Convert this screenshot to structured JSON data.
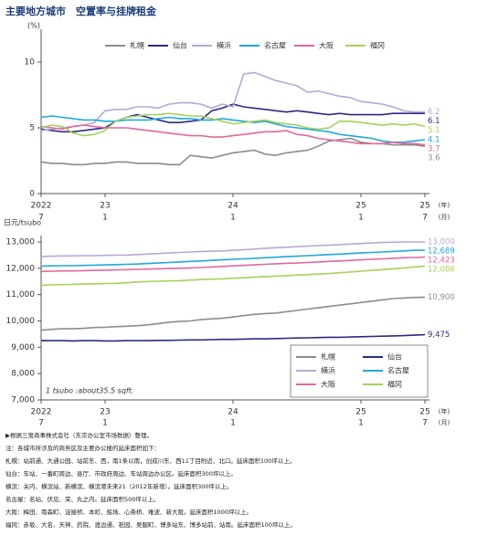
{
  "title": "主要地方城市　空置率与挂牌租金",
  "chart_data": [
    {
      "type": "line",
      "ylabel": "(%)",
      "xlabel": {
        "year": "(年)",
        "month": "(月)"
      },
      "x": [
        "2022-07",
        "2022-08",
        "2022-09",
        "2022-10",
        "2022-11",
        "2022-12",
        "2023-01",
        "2023-02",
        "2023-03",
        "2023-04",
        "2023-05",
        "2023-06",
        "2023-07",
        "2023-08",
        "2023-09",
        "2023-10",
        "2023-11",
        "2023-12",
        "2024-01",
        "2024-02",
        "2024-03",
        "2024-04",
        "2024-05",
        "2024-06",
        "2024-07",
        "2024-08",
        "2024-09",
        "2024-10",
        "2024-11",
        "2024-12",
        "2025-01",
        "2025-02",
        "2025-03",
        "2025-04",
        "2025-05",
        "2025-06",
        "2025-07"
      ],
      "xticks": [
        {
          "value": "2022-07",
          "label": [
            "2022",
            "7"
          ]
        },
        {
          "value": "2023-01",
          "label": [
            "23",
            "1"
          ]
        },
        {
          "value": "2024-01",
          "label": [
            "24",
            "1"
          ]
        },
        {
          "value": "2025-01",
          "label": [
            "25",
            "1"
          ]
        },
        {
          "value": "2025-07",
          "label": [
            "25",
            "7"
          ]
        }
      ],
      "ylim": [
        0,
        10
      ],
      "yticks": [
        0,
        5,
        10
      ],
      "series": [
        {
          "name": "札幌",
          "color": "#8c8c8c",
          "values": [
            2.4,
            2.3,
            2.3,
            2.2,
            2.2,
            2.3,
            2.3,
            2.4,
            2.4,
            2.3,
            2.3,
            2.3,
            2.2,
            2.2,
            2.9,
            2.8,
            2.7,
            2.9,
            3.1,
            3.2,
            3.3,
            3.0,
            2.9,
            3.1,
            3.2,
            3.3,
            3.6,
            4.0,
            4.1,
            4.2,
            3.9,
            3.8,
            3.8,
            3.7,
            3.7,
            3.7,
            3.6
          ]
        },
        {
          "name": "仙台",
          "color": "#2a2a86",
          "values": [
            4.9,
            4.8,
            4.7,
            4.7,
            4.8,
            4.9,
            5.0,
            5.5,
            5.8,
            6.0,
            5.8,
            5.6,
            5.4,
            5.4,
            5.5,
            5.6,
            6.3,
            6.5,
            6.8,
            6.6,
            6.5,
            6.4,
            6.3,
            6.2,
            6.3,
            6.2,
            6.1,
            6.0,
            6.1,
            6.0,
            6.0,
            6.0,
            6.0,
            6.1,
            6.1,
            6.1,
            6.1
          ]
        },
        {
          "name": "横浜",
          "color": "#b9a7d6",
          "values": [
            4.8,
            4.9,
            5.0,
            5.1,
            5.2,
            5.4,
            6.3,
            6.4,
            6.4,
            6.6,
            6.6,
            6.5,
            6.8,
            6.9,
            6.9,
            6.8,
            6.5,
            6.8,
            6.6,
            9.1,
            9.2,
            8.9,
            8.6,
            8.4,
            8.2,
            7.7,
            7.8,
            7.6,
            7.4,
            7.3,
            7.0,
            6.9,
            6.8,
            6.6,
            6.3,
            6.2,
            6.2
          ]
        },
        {
          "name": "名古屋",
          "color": "#1fa8e0",
          "values": [
            5.8,
            5.9,
            5.8,
            5.7,
            5.6,
            5.6,
            5.5,
            5.5,
            5.6,
            5.6,
            5.6,
            5.7,
            5.8,
            5.7,
            5.7,
            5.6,
            5.6,
            5.7,
            5.6,
            5.5,
            5.4,
            5.5,
            5.3,
            5.1,
            5.0,
            4.9,
            4.8,
            4.7,
            4.5,
            4.4,
            4.3,
            4.2,
            4.0,
            3.9,
            3.9,
            4.0,
            4.1
          ]
        },
        {
          "name": "大阪",
          "color": "#e2679c",
          "values": [
            5.1,
            5.0,
            4.9,
            5.1,
            5.2,
            5.1,
            5.0,
            5.0,
            5.0,
            4.9,
            4.8,
            4.7,
            4.6,
            4.5,
            4.4,
            4.4,
            4.3,
            4.3,
            4.4,
            4.5,
            4.6,
            4.7,
            4.7,
            4.8,
            4.5,
            4.4,
            4.2,
            4.1,
            4.0,
            3.9,
            3.8,
            3.8,
            3.8,
            3.9,
            3.8,
            3.8,
            3.7
          ]
        },
        {
          "name": "福冈",
          "color": "#a8d05a",
          "values": [
            5.0,
            5.2,
            5.1,
            4.6,
            4.4,
            4.5,
            4.8,
            5.5,
            5.8,
            5.9,
            6.0,
            6.0,
            6.1,
            6.0,
            5.9,
            5.9,
            5.7,
            5.5,
            5.3,
            5.4,
            5.5,
            5.6,
            5.4,
            5.3,
            5.2,
            5.0,
            4.9,
            5.0,
            5.5,
            5.5,
            5.4,
            5.3,
            5.2,
            5.3,
            5.2,
            5.3,
            5.1
          ]
        }
      ]
    },
    {
      "type": "line",
      "ylabel": "日元/tsubo",
      "xlabel": {
        "year": "(年)",
        "month": "(月)"
      },
      "annotation": "1 tsubo :about35.5 sqft.",
      "x": [
        "2022-07",
        "2022-08",
        "2022-09",
        "2022-10",
        "2022-11",
        "2022-12",
        "2023-01",
        "2023-02",
        "2023-03",
        "2023-04",
        "2023-05",
        "2023-06",
        "2023-07",
        "2023-08",
        "2023-09",
        "2023-10",
        "2023-11",
        "2023-12",
        "2024-01",
        "2024-02",
        "2024-03",
        "2024-04",
        "2024-05",
        "2024-06",
        "2024-07",
        "2024-08",
        "2024-09",
        "2024-10",
        "2024-11",
        "2024-12",
        "2025-01",
        "2025-02",
        "2025-03",
        "2025-04",
        "2025-05",
        "2025-06",
        "2025-07"
      ],
      "xticks": [
        {
          "value": "2022-07",
          "label": [
            "2022",
            "7"
          ]
        },
        {
          "value": "2023-01",
          "label": [
            "23",
            "1"
          ]
        },
        {
          "value": "2024-01",
          "label": [
            "24",
            "1"
          ]
        },
        {
          "value": "2025-01",
          "label": [
            "25",
            "1"
          ]
        },
        {
          "value": "2025-07",
          "label": [
            "25",
            "7"
          ]
        }
      ],
      "ylim": [
        7000,
        13000
      ],
      "yticks": [
        {
          "value": 7000,
          "label": "7,000"
        },
        {
          "value": 8000,
          "label": "8,000"
        },
        {
          "value": 9000,
          "label": "9,000"
        },
        {
          "value": 10000,
          "label": "10,000"
        },
        {
          "value": 11000,
          "label": "11,000"
        },
        {
          "value": 12000,
          "label": "12,000"
        },
        {
          "value": 13000,
          "label": "13,000"
        }
      ],
      "series": [
        {
          "name": "札幌",
          "color": "#8c8c8c",
          "values": [
            9650,
            9680,
            9700,
            9700,
            9720,
            9750,
            9760,
            9780,
            9800,
            9820,
            9850,
            9900,
            9950,
            9980,
            10000,
            10050,
            10080,
            10100,
            10150,
            10200,
            10250,
            10280,
            10300,
            10350,
            10400,
            10450,
            10500,
            10550,
            10600,
            10650,
            10700,
            10750,
            10800,
            10850,
            10870,
            10890,
            10900
          ],
          "value_labels": [
            null,
            null,
            null,
            null,
            null,
            null,
            null,
            null,
            null,
            null,
            null,
            null,
            null,
            null,
            null,
            null,
            null,
            null,
            null,
            null,
            null,
            null,
            null,
            null,
            null,
            null,
            null,
            null,
            null,
            null,
            null,
            null,
            null,
            null,
            null,
            null,
            "10,900"
          ]
        },
        {
          "name": "仙台",
          "color": "#2a2a86",
          "values": [
            9250,
            9250,
            9250,
            9240,
            9250,
            9250,
            9240,
            9240,
            9250,
            9250,
            9250,
            9260,
            9260,
            9270,
            9280,
            9280,
            9290,
            9300,
            9300,
            9310,
            9320,
            9320,
            9330,
            9340,
            9350,
            9360,
            9370,
            9380,
            9380,
            9390,
            9400,
            9410,
            9420,
            9430,
            9440,
            9460,
            9475
          ],
          "value_labels": [
            null,
            null,
            null,
            null,
            null,
            null,
            null,
            null,
            null,
            null,
            null,
            null,
            null,
            null,
            null,
            null,
            null,
            null,
            null,
            null,
            null,
            null,
            null,
            null,
            null,
            null,
            null,
            null,
            null,
            null,
            null,
            null,
            null,
            null,
            null,
            null,
            "9,475"
          ]
        },
        {
          "name": "横浜",
          "color": "#b9a7d6",
          "values": [
            12450,
            12460,
            12470,
            12470,
            12480,
            12480,
            12490,
            12500,
            12500,
            12520,
            12540,
            12560,
            12580,
            12600,
            12620,
            12640,
            12650,
            12660,
            12680,
            12700,
            12730,
            12760,
            12780,
            12800,
            12820,
            12840,
            12860,
            12880,
            12900,
            12920,
            12940,
            12960,
            12980,
            12990,
            13000,
            13000,
            13000
          ],
          "value_labels": [
            null,
            null,
            null,
            null,
            null,
            null,
            null,
            null,
            null,
            null,
            null,
            null,
            null,
            null,
            null,
            null,
            null,
            null,
            null,
            null,
            null,
            null,
            null,
            null,
            null,
            null,
            null,
            null,
            null,
            null,
            null,
            null,
            null,
            null,
            null,
            null,
            "13,000"
          ]
        },
        {
          "name": "名古屋",
          "color": "#1fa8e0",
          "values": [
            12080,
            12090,
            12100,
            12100,
            12110,
            12120,
            12130,
            12140,
            12150,
            12160,
            12180,
            12200,
            12220,
            12240,
            12260,
            12280,
            12300,
            12320,
            12340,
            12360,
            12380,
            12400,
            12420,
            12440,
            12460,
            12480,
            12500,
            12520,
            12540,
            12560,
            12580,
            12600,
            12620,
            12640,
            12660,
            12680,
            12689
          ],
          "value_labels": [
            null,
            null,
            null,
            null,
            null,
            null,
            null,
            null,
            null,
            null,
            null,
            null,
            null,
            null,
            null,
            null,
            null,
            null,
            null,
            null,
            null,
            null,
            null,
            null,
            null,
            null,
            null,
            null,
            null,
            null,
            null,
            null,
            null,
            null,
            null,
            null,
            "12,689"
          ]
        },
        {
          "name": "大阪",
          "color": "#e2679c",
          "values": [
            11880,
            11890,
            11900,
            11900,
            11910,
            11920,
            11930,
            11940,
            11950,
            11960,
            11970,
            11980,
            11990,
            12000,
            12010,
            12030,
            12050,
            12070,
            12090,
            12110,
            12130,
            12150,
            12170,
            12190,
            12200,
            12220,
            12240,
            12260,
            12280,
            12300,
            12320,
            12340,
            12360,
            12380,
            12400,
            12410,
            12423
          ],
          "value_labels": [
            null,
            null,
            null,
            null,
            null,
            null,
            null,
            null,
            null,
            null,
            null,
            null,
            null,
            null,
            null,
            null,
            null,
            null,
            null,
            null,
            null,
            null,
            null,
            null,
            null,
            null,
            null,
            null,
            null,
            null,
            null,
            null,
            null,
            null,
            null,
            null,
            "12,423"
          ]
        },
        {
          "name": "福冈",
          "color": "#a8d05a",
          "values": [
            11350,
            11370,
            11380,
            11390,
            11400,
            11410,
            11420,
            11430,
            11450,
            11480,
            11500,
            11510,
            11520,
            11530,
            11550,
            11570,
            11590,
            11600,
            11620,
            11640,
            11660,
            11680,
            11700,
            11720,
            11740,
            11760,
            11780,
            11800,
            11830,
            11860,
            11890,
            11920,
            11950,
            11980,
            12010,
            12050,
            12086
          ],
          "value_labels": [
            null,
            null,
            null,
            null,
            null,
            null,
            null,
            null,
            null,
            null,
            null,
            null,
            null,
            null,
            null,
            null,
            null,
            null,
            null,
            null,
            null,
            null,
            null,
            null,
            null,
            null,
            null,
            null,
            null,
            null,
            null,
            null,
            null,
            null,
            null,
            null,
            "12,086"
          ]
        }
      ]
    }
  ],
  "notes": [
    "▶根据三鬼商事株式会社（东京办公室市场数据）整理。",
    "注：各城市所涉及的商务区及主要办公楼的延床面积如下：",
    "札幌：站前通、大通公园、站前东、西，南1条以南，创成川东、西11丁目附近、北口。延床面积100坪以上。",
    "仙台：车站、一番町周边、县厅、市政府周边、车站周边办公区。延床面积300坪以上。",
    "横滨：关内、横滨站、新横滨、横滨港未来21（2012年新增）。延床面积300坪以上。",
    "名古屋：名站、伏见、荣、丸之内。延床面积500坪以上。",
    "大阪：梅田、南森町、淀屋桥、本町、船场、心斋桥、难波、新大阪。延床面积1000坪以上。",
    "福冈：赤坂、大名、天神、药院、渡边通、祇园、吴服町、博多站东、博多站前、站南。延床面积100坪以上。"
  ]
}
